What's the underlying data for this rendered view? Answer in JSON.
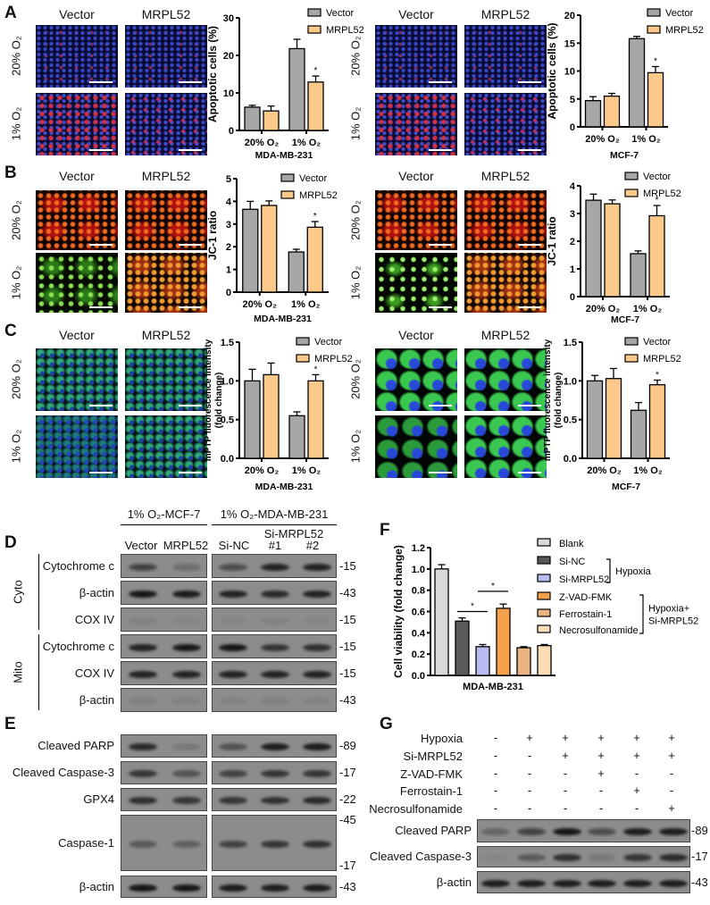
{
  "panel_labels": {
    "A": "A",
    "B": "B",
    "C": "C",
    "D": "D",
    "E": "E",
    "F": "F",
    "G": "G"
  },
  "micrographs": {
    "col_labels": [
      "Vector",
      "MRPL52"
    ],
    "row_labels": [
      "20% O₂",
      "1% O₂"
    ]
  },
  "chart_data": [
    {
      "id": "A-MDA",
      "type": "bar",
      "title": "",
      "xlabel": "MDA-MB-231",
      "ylabel_lines": [
        "Apoptotic cells (%)"
      ],
      "categories": [
        "20% O₂",
        "1% O₂"
      ],
      "ylim": [
        0,
        30
      ],
      "yticks": [
        0,
        10,
        20,
        30
      ],
      "grid": false,
      "legend": "top-right",
      "series": [
        {
          "name": "Vector",
          "color": "#a6a6a6",
          "values": [
            6.2,
            21.8
          ],
          "errors": [
            0.5,
            2.5
          ]
        },
        {
          "name": "MRPL52",
          "color": "#fbc98a",
          "values": [
            5.2,
            12.9
          ],
          "errors": [
            1.3,
            1.6
          ]
        }
      ],
      "significance": [
        {
          "category": 1,
          "series": 1,
          "label": "*"
        }
      ]
    },
    {
      "id": "A-MCF",
      "type": "bar",
      "title": "",
      "xlabel": "MCF-7",
      "ylabel_lines": [
        "Apoptotic cells (%)"
      ],
      "categories": [
        "20% O₂",
        "1% O₂"
      ],
      "ylim": [
        0,
        20
      ],
      "yticks": [
        0,
        5,
        10,
        15,
        20
      ],
      "grid": false,
      "legend": "top-right",
      "series": [
        {
          "name": "Vector",
          "color": "#a6a6a6",
          "values": [
            4.7,
            15.8
          ],
          "errors": [
            0.7,
            0.4
          ]
        },
        {
          "name": "MRPL52",
          "color": "#fbc98a",
          "values": [
            5.5,
            9.7
          ],
          "errors": [
            0.5,
            1.1
          ]
        }
      ],
      "significance": [
        {
          "category": 1,
          "series": 1,
          "label": "*"
        }
      ]
    },
    {
      "id": "B-MDA",
      "type": "bar",
      "title": "",
      "xlabel": "MDA-MB-231",
      "ylabel_lines": [
        "JC-1 ratio"
      ],
      "categories": [
        "20% O₂",
        "1% O₂"
      ],
      "ylim": [
        0,
        5
      ],
      "yticks": [
        0,
        1,
        2,
        3,
        4,
        5
      ],
      "grid": false,
      "legend": "top-right",
      "series": [
        {
          "name": "Vector",
          "color": "#a6a6a6",
          "values": [
            3.65,
            1.77
          ],
          "errors": [
            0.35,
            0.12
          ]
        },
        {
          "name": "MRPL52",
          "color": "#fbc98a",
          "values": [
            3.82,
            2.86
          ],
          "errors": [
            0.2,
            0.25
          ]
        }
      ],
      "significance": [
        {
          "category": 1,
          "series": 1,
          "label": "*"
        }
      ]
    },
    {
      "id": "B-MCF",
      "type": "bar",
      "title": "",
      "xlabel": "MCF-7",
      "ylabel_lines": [
        "JC-1 ratio"
      ],
      "categories": [
        "20% O₂",
        "1% O₂"
      ],
      "ylim": [
        0,
        4
      ],
      "yticks": [
        0,
        1,
        2,
        3,
        4
      ],
      "grid": false,
      "legend": "top-right",
      "series": [
        {
          "name": "Vector",
          "color": "#a6a6a6",
          "values": [
            3.48,
            1.55
          ],
          "errors": [
            0.22,
            0.1
          ]
        },
        {
          "name": "MRPL52",
          "color": "#fbc98a",
          "values": [
            3.35,
            2.92
          ],
          "errors": [
            0.14,
            0.37
          ]
        }
      ],
      "significance": [
        {
          "category": 1,
          "series": 1,
          "label": "*"
        }
      ]
    },
    {
      "id": "C-MDA",
      "type": "bar",
      "title": "",
      "xlabel": "MDA-MB-231",
      "ylabel_lines": [
        "mPTP fluorescence intensity",
        "(fold change)"
      ],
      "categories": [
        "20% O₂",
        "1% O₂"
      ],
      "ylim": [
        0,
        1.5
      ],
      "yticks": [
        0,
        0.5,
        1.0,
        1.5
      ],
      "grid": false,
      "legend": "top-right",
      "series": [
        {
          "name": "Vector",
          "color": "#a6a6a6",
          "values": [
            1.0,
            0.55
          ],
          "errors": [
            0.15,
            0.05
          ]
        },
        {
          "name": "MRPL52",
          "color": "#fbc98a",
          "values": [
            1.08,
            1.0
          ],
          "errors": [
            0.15,
            0.08
          ]
        }
      ],
      "significance": [
        {
          "category": 1,
          "series": 1,
          "label": "*"
        }
      ]
    },
    {
      "id": "C-MCF",
      "type": "bar",
      "title": "",
      "xlabel": "MCF-7",
      "ylabel_lines": [
        "mPTP fluorescence intensity",
        "(fold change)"
      ],
      "categories": [
        "20% O₂",
        "1% O₂"
      ],
      "ylim": [
        0,
        1.5
      ],
      "yticks": [
        0,
        0.5,
        1.0,
        1.5
      ],
      "grid": false,
      "legend": "top-right",
      "series": [
        {
          "name": "Vector",
          "color": "#a6a6a6",
          "values": [
            1.0,
            0.62
          ],
          "errors": [
            0.07,
            0.1
          ]
        },
        {
          "name": "MRPL52",
          "color": "#fbc98a",
          "values": [
            1.03,
            0.95
          ],
          "errors": [
            0.13,
            0.06
          ]
        }
      ],
      "significance": [
        {
          "category": 1,
          "series": 1,
          "label": "*"
        }
      ]
    },
    {
      "id": "F",
      "type": "bar",
      "title": "",
      "xlabel": "MDA-MB-231",
      "ylabel_lines": [
        "Cell viability (fold change)"
      ],
      "categories": [
        "Blank",
        "Si-NC",
        "Si-MRPL52",
        "Z-VAD-FMK",
        "Ferrostain-1",
        "Necrosulfonamide"
      ],
      "values": [
        1.0,
        0.51,
        0.27,
        0.63,
        0.26,
        0.28
      ],
      "errors": [
        0.04,
        0.03,
        0.02,
        0.04,
        0.01,
        0.01
      ],
      "colors": [
        "#d9d9d9",
        "#595959",
        "#b8bcf2",
        "#f5a04a",
        "#e9b480",
        "#fcdcb4"
      ],
      "ylim": [
        0,
        1.2
      ],
      "yticks": [
        0.0,
        0.2,
        0.4,
        0.6,
        0.8,
        1.0,
        1.2
      ],
      "grid": false,
      "legend": "right",
      "comparisons": [
        {
          "from": 1,
          "to": 2,
          "label": "*"
        },
        {
          "from": 2,
          "to": 3,
          "label": "*"
        }
      ],
      "legend_groups": [
        {
          "label_lines": [
            "Hypoxia"
          ],
          "members": [
            1,
            2
          ]
        },
        {
          "label_lines": [
            "Hypoxia+",
            "Si-MRPL52"
          ],
          "members": [
            3,
            4,
            5
          ]
        }
      ]
    }
  ],
  "panel_d": {
    "groups": [
      "1% O₂-MCF-7",
      "1% O₂-MDA-MB-231"
    ],
    "lanes": [
      "Vector",
      "MRPL52",
      "Si-NC",
      "#1",
      "#2"
    ],
    "lane_group_label": "Si-MRPL52",
    "fractions": [
      "Cyto",
      "Mito"
    ],
    "rows": [
      {
        "label": "Cytochrome c",
        "mw": "-15",
        "bands": [
          0.6,
          0.25,
          0.5,
          0.85,
          0.85
        ]
      },
      {
        "label": "β-actin",
        "mw": "-43",
        "bands": [
          0.95,
          0.9,
          0.85,
          0.8,
          0.85
        ]
      },
      {
        "label": "COX IV",
        "mw": "-15",
        "bands": [
          0.08,
          0.05,
          0.05,
          0.08,
          0.05
        ]
      },
      {
        "label": "Cytochrome c",
        "mw": "-15",
        "bands": [
          0.85,
          0.95,
          0.95,
          0.7,
          0.75
        ]
      },
      {
        "label": "COX IV",
        "mw": "-15",
        "bands": [
          0.85,
          0.85,
          0.85,
          0.85,
          0.85
        ]
      },
      {
        "label": "β-actin",
        "mw": "-43",
        "bands": [
          0.1,
          0.08,
          0.08,
          0.1,
          0.08
        ]
      }
    ]
  },
  "panel_e": {
    "rows": [
      {
        "label": "Cleaved PARP",
        "mw": [
          "-89"
        ],
        "bands": [
          0.8,
          0.15,
          0.45,
          0.9,
          0.9
        ]
      },
      {
        "label": "Cleaved Caspase-3",
        "mw": [
          "-17"
        ],
        "bands": [
          0.7,
          0.45,
          0.6,
          0.7,
          0.7
        ]
      },
      {
        "label": "GPX4",
        "mw": [
          "-22"
        ],
        "bands": [
          0.75,
          0.7,
          0.7,
          0.75,
          0.8
        ]
      },
      {
        "label": "Caspase-1",
        "mw": [
          "-45",
          "-17"
        ],
        "bands": [
          0.4,
          0.35,
          0.6,
          0.7,
          0.75
        ]
      },
      {
        "label": "β-actin",
        "mw": [
          "-43"
        ],
        "bands": [
          0.95,
          0.95,
          0.9,
          0.9,
          0.9
        ]
      }
    ]
  },
  "panel_g": {
    "conditions": [
      {
        "label": "Hypoxia",
        "signs": [
          "-",
          "+",
          "+",
          "+",
          "+",
          "+"
        ]
      },
      {
        "label": "Si-MRPL52",
        "signs": [
          "-",
          "-",
          "+",
          "+",
          "+",
          "+"
        ]
      },
      {
        "label": "Z-VAD-FMK",
        "signs": [
          "-",
          "-",
          "-",
          "+",
          "-",
          "-"
        ]
      },
      {
        "label": "Ferrostain-1",
        "signs": [
          "-",
          "-",
          "-",
          "-",
          "+",
          "-"
        ]
      },
      {
        "label": "Necrosulfonamide",
        "signs": [
          "-",
          "-",
          "-",
          "-",
          "-",
          "+"
        ]
      }
    ],
    "rows": [
      {
        "label": "Cleaved PARP",
        "mw": "-89",
        "bands": [
          0.3,
          0.6,
          0.95,
          0.5,
          0.9,
          0.9
        ]
      },
      {
        "label": "Cleaved Caspase-3",
        "mw": "-17",
        "bands": [
          0.05,
          0.4,
          0.75,
          0.15,
          0.7,
          0.8
        ]
      },
      {
        "label": "β-actin",
        "mw": "-43",
        "bands": [
          0.9,
          0.9,
          0.9,
          0.9,
          0.9,
          0.9
        ]
      }
    ]
  }
}
